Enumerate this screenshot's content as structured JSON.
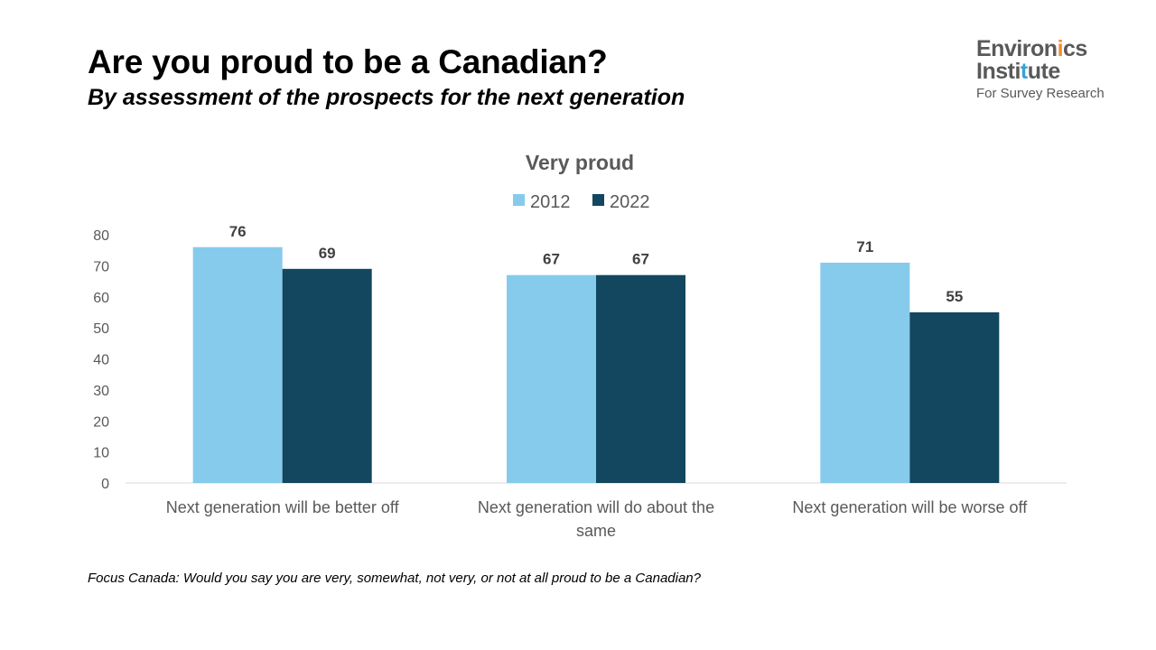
{
  "title": "Are you proud to be a Canadian?",
  "subtitle": "By assessment of the prospects for the next generation",
  "logo": {
    "line1_a": "Environ",
    "line1_b": "i",
    "line1_c": "cs",
    "line2_a": "Insti",
    "line2_b": "t",
    "line2_c": "ute",
    "line3": "For Survey Research"
  },
  "footnote": "Focus Canada: Would you say you are very, somewhat, not very, or not at all proud to be a Canadian?",
  "chart_data": {
    "type": "bar",
    "title": "Very proud",
    "categories": [
      [
        "Next generation will be better off"
      ],
      [
        "Next generation will do about the",
        "same"
      ],
      [
        "Next generation will be worse off"
      ]
    ],
    "series": [
      {
        "name": "2012",
        "values": [
          76,
          67,
          71
        ],
        "color": "#86CBEC"
      },
      {
        "name": "2022",
        "values": [
          69,
          67,
          55
        ],
        "color": "#12475F"
      }
    ],
    "ylim": [
      0,
      80
    ],
    "yticks": [
      0,
      10,
      20,
      30,
      40,
      50,
      60,
      70,
      80
    ],
    "grid": false,
    "legend": "top-center"
  }
}
